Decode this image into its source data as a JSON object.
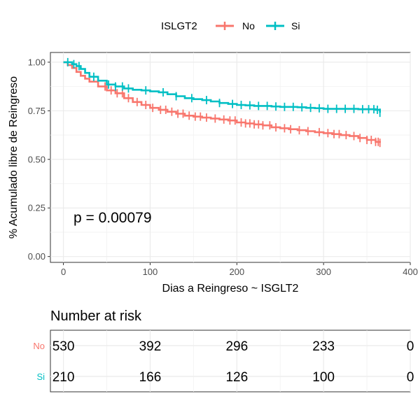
{
  "chart_data": [
    {
      "type": "line",
      "subtype": "kaplan-meier",
      "legend": {
        "title": "ISLGT2",
        "position": "top"
      },
      "xlabel": "Dias a Reingreso ~ ISGLT2",
      "ylabel": "% Acumulado libre de Reingreso",
      "xlim": [
        -15,
        400
      ],
      "ylim": [
        -0.03,
        1.05
      ],
      "x_ticks": [
        0,
        100,
        200,
        300,
        400
      ],
      "x_tick_labels": [
        "0",
        "100",
        "200",
        "300",
        "400"
      ],
      "y_ticks": [
        0,
        0.25,
        0.5,
        0.75,
        1.0
      ],
      "y_tick_labels": [
        "0.00",
        "0.25",
        "0.50",
        "0.75",
        "1.00"
      ],
      "grid": true,
      "annotation": "p = 0.00079",
      "series": [
        {
          "name": "No",
          "color": "#F8766D",
          "x": [
            0,
            5,
            10,
            15,
            20,
            25,
            30,
            40,
            50,
            60,
            70,
            80,
            90,
            100,
            110,
            120,
            130,
            140,
            150,
            160,
            170,
            180,
            190,
            200,
            210,
            220,
            230,
            240,
            250,
            260,
            270,
            280,
            290,
            300,
            310,
            320,
            330,
            340,
            350,
            360,
            365
          ],
          "y": [
            1.0,
            0.985,
            0.97,
            0.95,
            0.93,
            0.915,
            0.9,
            0.875,
            0.855,
            0.84,
            0.815,
            0.795,
            0.78,
            0.765,
            0.755,
            0.745,
            0.735,
            0.725,
            0.72,
            0.715,
            0.71,
            0.705,
            0.7,
            0.69,
            0.685,
            0.68,
            0.675,
            0.665,
            0.66,
            0.655,
            0.65,
            0.645,
            0.64,
            0.635,
            0.63,
            0.625,
            0.62,
            0.61,
            0.6,
            0.59,
            0.585
          ],
          "censor_x": [
            48,
            55,
            62,
            68,
            75,
            85,
            95,
            103,
            112,
            118,
            125,
            132,
            138,
            145,
            152,
            158,
            165,
            175,
            185,
            192,
            198,
            205,
            210,
            215,
            220,
            225,
            230,
            238,
            245,
            255,
            262,
            272,
            282,
            295,
            305,
            312,
            318,
            326,
            335,
            342,
            350,
            355,
            360,
            363,
            365
          ]
        },
        {
          "name": "Si",
          "color": "#00BFC4",
          "x": [
            0,
            10,
            15,
            20,
            25,
            30,
            40,
            50,
            60,
            70,
            80,
            90,
            100,
            110,
            120,
            130,
            140,
            150,
            160,
            170,
            180,
            190,
            200,
            210,
            220,
            230,
            240,
            250,
            260,
            270,
            280,
            290,
            300,
            320,
            340,
            360,
            365
          ],
          "y": [
            1.0,
            0.99,
            0.98,
            0.965,
            0.945,
            0.925,
            0.905,
            0.885,
            0.875,
            0.865,
            0.858,
            0.855,
            0.85,
            0.845,
            0.835,
            0.825,
            0.815,
            0.81,
            0.805,
            0.798,
            0.79,
            0.785,
            0.78,
            0.778,
            0.775,
            0.775,
            0.772,
            0.77,
            0.77,
            0.768,
            0.765,
            0.763,
            0.76,
            0.76,
            0.758,
            0.755,
            0.74
          ],
          "censor_x": [
            5,
            12,
            18,
            35,
            52,
            60,
            68,
            75,
            95,
            115,
            130,
            148,
            165,
            180,
            195,
            205,
            215,
            225,
            235,
            245,
            255,
            265,
            275,
            285,
            295,
            305,
            315,
            325,
            335,
            345,
            352,
            358,
            362,
            365
          ]
        }
      ]
    },
    {
      "type": "table",
      "title": "Number at risk",
      "x_ticks": [
        0,
        100,
        200,
        300,
        400
      ],
      "rows": [
        {
          "group": "No",
          "color": "#F8766D",
          "values": [
            "530",
            "392",
            "296",
            "233",
            "0"
          ]
        },
        {
          "group": "Si",
          "color": "#00BFC4",
          "values": [
            "210",
            "166",
            "126",
            "100",
            "0"
          ]
        }
      ]
    }
  ]
}
